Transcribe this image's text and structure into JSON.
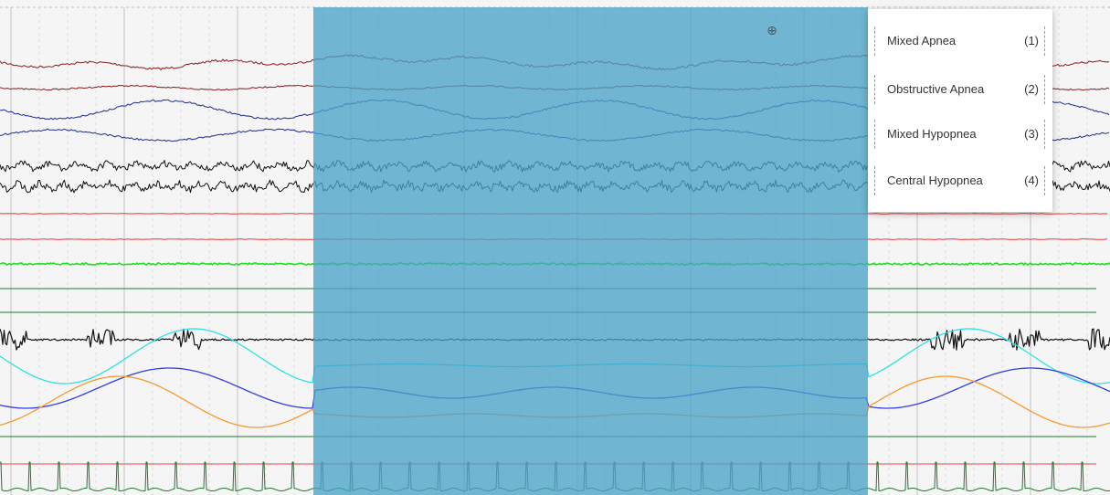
{
  "event_menu": {
    "items": [
      {
        "label": "Mixed Apnea",
        "key": "(1)"
      },
      {
        "label": "Obstructive Apnea",
        "key": "(2)"
      },
      {
        "label": "Mixed Hypopnea",
        "key": "(3)"
      },
      {
        "label": "Central Hypopnea",
        "key": "(4)"
      }
    ]
  },
  "icons": {
    "cursor": "crosshair-icon",
    "cursor_glyph": "⊕"
  },
  "colors": {
    "background": "#f5f5f5",
    "selection": "#4aa3c7",
    "trace_red_dark": "#8b1a1a",
    "trace_blue_dark": "#1e2a8c",
    "trace_black": "#111111",
    "trace_red": "#e53935",
    "trace_green": "#21e021",
    "trace_dark_green": "#1b7a2a",
    "trace_cyan": "#2ee0e8",
    "trace_blue": "#2f3ee0",
    "trace_orange": "#f59a30"
  }
}
